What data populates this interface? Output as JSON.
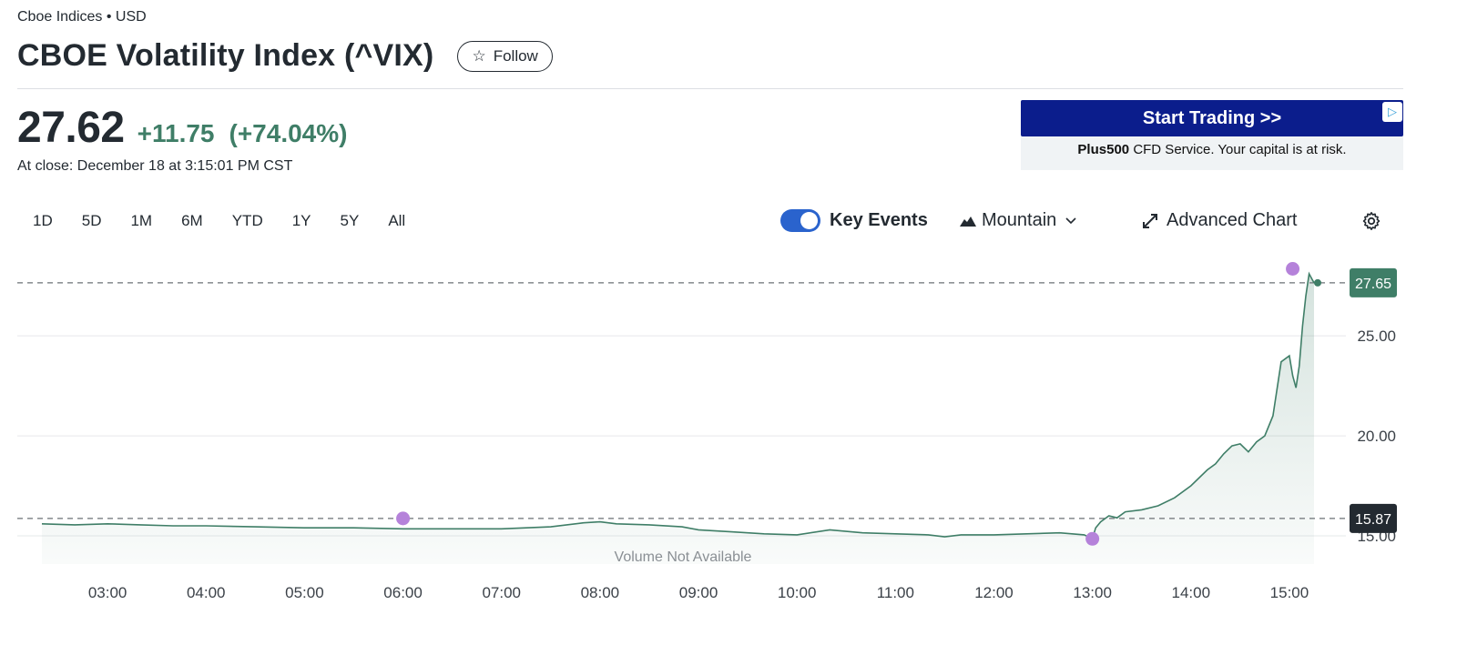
{
  "header": {
    "exchange_line": "Cboe Indices • USD",
    "title": "CBOE Volatility Index (^VIX)",
    "follow_label": "Follow"
  },
  "quote": {
    "price": "27.62",
    "change": "+11.75",
    "change_pct": "(+74.04%)",
    "close_time": "At close: December 18 at 3:15:01 PM CST",
    "positive_color": "#3f7e67"
  },
  "ad": {
    "cta": "Start Trading >>",
    "brand": "Plus500",
    "disclaimer": "CFD Service. Your capital is at risk."
  },
  "range_tabs": [
    "1D",
    "5D",
    "1M",
    "6M",
    "YTD",
    "1Y",
    "5Y",
    "All"
  ],
  "controls": {
    "key_events_label": "Key Events",
    "key_events_on": true,
    "chart_type_label": "Mountain",
    "advanced_chart_label": "Advanced Chart",
    "icons": [
      "mountain-icon",
      "chevron-down-icon",
      "expand-icon",
      "gear-icon"
    ],
    "accent_color": "#2a63cd"
  },
  "chart_data": {
    "type": "area",
    "xlabel": "",
    "ylabel": "",
    "x_ticks": [
      "03:00",
      "04:00",
      "05:00",
      "06:00",
      "07:00",
      "08:00",
      "09:00",
      "10:00",
      "11:00",
      "12:00",
      "13:00",
      "14:00",
      "15:00"
    ],
    "y_ticks": [
      15,
      20,
      25
    ],
    "y_tick_labels": [
      "15.00",
      "20.00",
      "25.00"
    ],
    "ylim": [
      14.5,
      28.6
    ],
    "xlim": [
      "02:20",
      "15:20"
    ],
    "grid": "horizontal",
    "line_color": "#3f7e67",
    "series": [
      {
        "x": [
          "02:20",
          "02:40",
          "03:00",
          "03:20",
          "03:40",
          "04:00",
          "04:30",
          "05:00",
          "05:30",
          "06:00",
          "06:30",
          "07:00",
          "07:30",
          "07:50",
          "08:00",
          "08:10",
          "08:30",
          "08:50",
          "09:00",
          "09:20",
          "09:40",
          "10:00",
          "10:20",
          "10:40",
          "11:00",
          "11:20",
          "11:30",
          "11:40",
          "12:00",
          "12:20",
          "12:40",
          "12:55",
          "13:00",
          "13:02",
          "13:05",
          "13:10",
          "13:15",
          "13:20",
          "13:30",
          "13:40",
          "13:50",
          "14:00",
          "14:10",
          "14:15",
          "14:20",
          "14:25",
          "14:30",
          "14:35",
          "14:40",
          "14:45",
          "14:50",
          "14:55",
          "15:00",
          "15:02",
          "15:04",
          "15:06",
          "15:08",
          "15:10",
          "15:12",
          "15:14",
          "15:15"
        ],
        "y": [
          15.6,
          15.55,
          15.6,
          15.55,
          15.5,
          15.5,
          15.45,
          15.4,
          15.4,
          15.35,
          15.35,
          15.35,
          15.45,
          15.65,
          15.7,
          15.6,
          15.55,
          15.45,
          15.3,
          15.2,
          15.1,
          15.05,
          15.3,
          15.15,
          15.1,
          15.05,
          14.95,
          15.05,
          15.05,
          15.1,
          15.15,
          15.05,
          14.85,
          15.4,
          15.7,
          16.0,
          15.9,
          16.2,
          16.3,
          16.5,
          16.9,
          17.5,
          18.3,
          18.6,
          19.1,
          19.5,
          19.6,
          19.2,
          19.7,
          20.0,
          21.0,
          23.7,
          24.0,
          23.0,
          22.4,
          23.5,
          25.5,
          27.0,
          28.1,
          27.8,
          27.65
        ]
      }
    ],
    "reference_lines": [
      {
        "label": "27.65",
        "value": 27.65,
        "color": "#3f7e67"
      },
      {
        "label": "15.87",
        "value": 15.87,
        "color": "#232a31"
      }
    ],
    "key_events": [
      {
        "x": "06:00",
        "y": 15.87
      },
      {
        "x": "13:00",
        "y": 14.85
      },
      {
        "x": "15:02",
        "y": 28.35
      }
    ],
    "key_event_color": "#b582da",
    "volume_note": "Volume Not Available"
  }
}
